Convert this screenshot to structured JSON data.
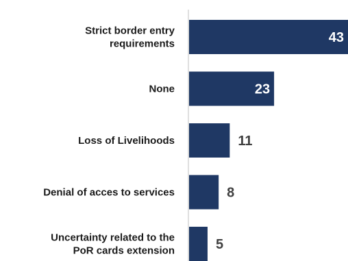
{
  "chart_data": {
    "type": "bar",
    "orientation": "horizontal",
    "categories": [
      [
        "Strict border entry",
        "requirements"
      ],
      [
        "None"
      ],
      [
        "Loss of Livelihoods"
      ],
      [
        "Denial of acces to services"
      ],
      [
        "Uncertainty related to the",
        "PoR cards extension"
      ]
    ],
    "values": [
      43,
      23,
      11,
      8,
      5
    ],
    "xlim": [
      0,
      43
    ],
    "bar_color": "#1f3864",
    "label_inside_color": "#ffffff",
    "label_outside_color": "#404040",
    "grid": false
  }
}
